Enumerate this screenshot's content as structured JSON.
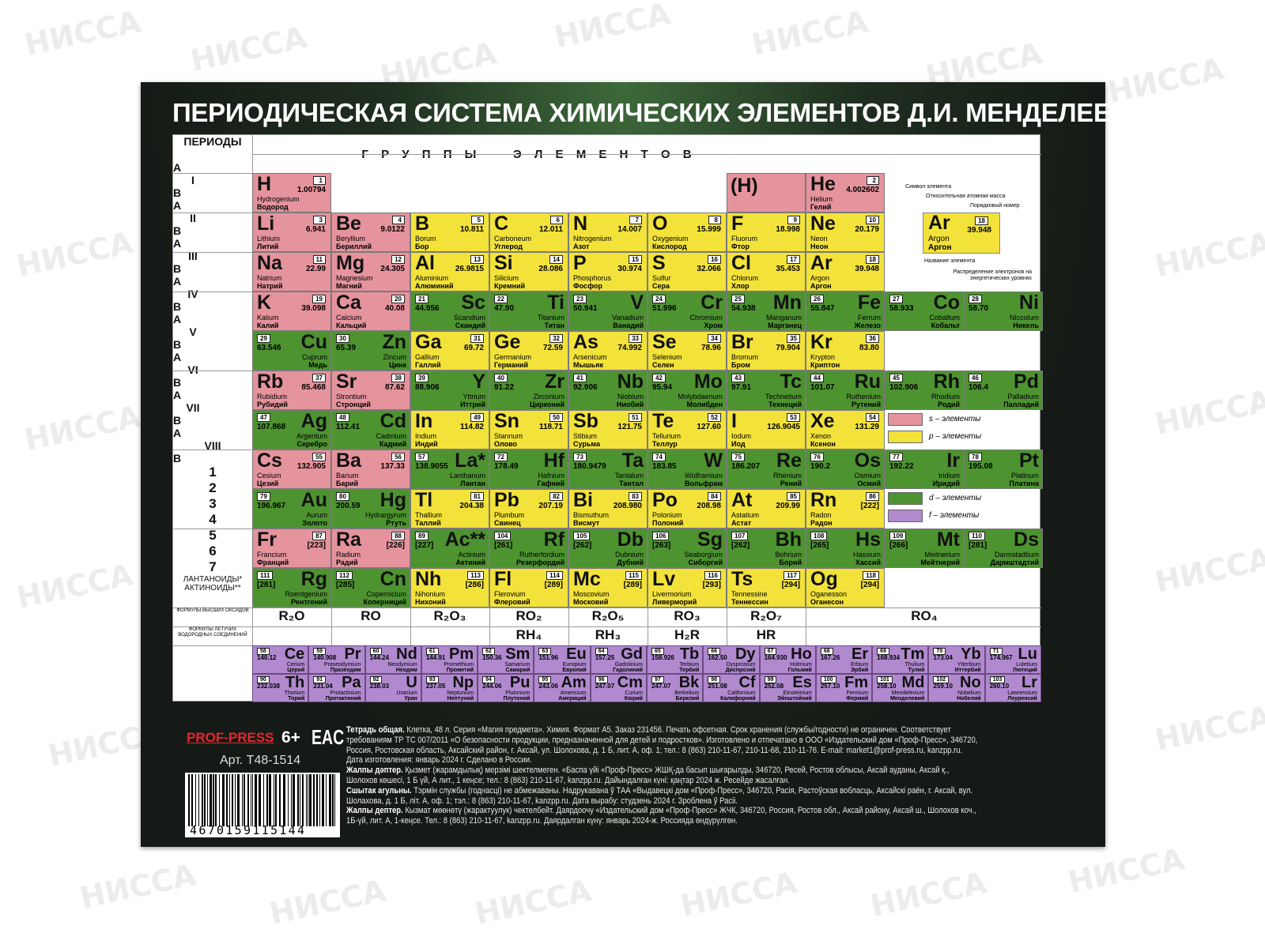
{
  "watermark": "НИССА",
  "title": "ПЕРИОДИЧЕСКАЯ СИСТЕМА ХИМИЧЕСКИХ ЭЛЕМЕНТОВ Д.И. МЕНДЕЛЕЕВА",
  "periods_label": "ПЕРИОДЫ",
  "groups_label": "Г Р У П П Ы    Э Л Е М Е Н Т О В",
  "groups": [
    "I",
    "II",
    "III",
    "IV",
    "V",
    "VI",
    "VII",
    "VIII"
  ],
  "subgroup_a": "A",
  "subgroup_b": "B",
  "periods": [
    "1",
    "2",
    "3",
    "4",
    "5",
    "6",
    "7"
  ],
  "colors": {
    "s": "#e5939d",
    "p": "#f2e23a",
    "d": "#4d9330",
    "f": "#b089cf"
  },
  "rows": [
    [
      [
        "H",
        1,
        "1.00794",
        "Hydrogenium",
        "Водород",
        "s",
        "A"
      ],
      null,
      null,
      null,
      null,
      null,
      [
        "(H)",
        "",
        "",
        "",
        "",
        "s",
        "A"
      ],
      [
        "He",
        2,
        "4.002602",
        "Helium",
        "Гелий",
        "s",
        "A"
      ],
      null,
      null
    ],
    [
      [
        "Li",
        3,
        "6.941",
        "Lithium",
        "Литий",
        "s",
        "A"
      ],
      [
        "Be",
        4,
        "9.0122",
        "Beryllium",
        "Бериллий",
        "s",
        "A"
      ],
      [
        "B",
        5,
        "10.811",
        "Borum",
        "Бор",
        "p",
        "A"
      ],
      [
        "C",
        6,
        "12.011",
        "Carboneum",
        "Углерод",
        "p",
        "A"
      ],
      [
        "N",
        7,
        "14.007",
        "Nitrogenium",
        "Азот",
        "p",
        "A"
      ],
      [
        "O",
        8,
        "15.999",
        "Oxygenium",
        "Кислород",
        "p",
        "A"
      ],
      [
        "F",
        9,
        "18.998",
        "Fluorum",
        "Фтор",
        "p",
        "A"
      ],
      [
        "Ne",
        10,
        "20.179",
        "Neon",
        "Неон",
        "p",
        "A"
      ],
      null,
      null
    ],
    [
      [
        "Na",
        11,
        "22.99",
        "Natrium",
        "Натрий",
        "s",
        "A"
      ],
      [
        "Mg",
        12,
        "24.305",
        "Magnesium",
        "Магний",
        "s",
        "A"
      ],
      [
        "Al",
        13,
        "26.9815",
        "Aluminium",
        "Алюминий",
        "p",
        "A"
      ],
      [
        "Si",
        14,
        "28.086",
        "Silicium",
        "Кремний",
        "p",
        "A"
      ],
      [
        "P",
        15,
        "30.974",
        "Phosphorus",
        "Фосфор",
        "p",
        "A"
      ],
      [
        "S",
        16,
        "32.066",
        "Sulfur",
        "Сера",
        "p",
        "A"
      ],
      [
        "Cl",
        17,
        "35.453",
        "Chlorum",
        "Хлор",
        "p",
        "A"
      ],
      [
        "Ar",
        18,
        "39.948",
        "Argon",
        "Аргон",
        "p",
        "A"
      ],
      null,
      null
    ],
    [
      [
        "K",
        19,
        "39.098",
        "Kalium",
        "Калий",
        "s",
        "A"
      ],
      [
        "Ca",
        20,
        "40.08",
        "Calcium",
        "Кальций",
        "s",
        "A"
      ],
      [
        "Sc",
        21,
        "44.956",
        "Scandium",
        "Скандий",
        "d",
        "B"
      ],
      [
        "Ti",
        22,
        "47.90",
        "Titanium",
        "Титан",
        "d",
        "B"
      ],
      [
        "V",
        23,
        "50.941",
        "Vanadium",
        "Ванадий",
        "d",
        "B"
      ],
      [
        "Cr",
        24,
        "51.996",
        "Chromium",
        "Хром",
        "d",
        "B"
      ],
      [
        "Mn",
        25,
        "54.938",
        "Manganum",
        "Марганец",
        "d",
        "B"
      ],
      [
        "Fe",
        26,
        "55.847",
        "Ferrum",
        "Железо",
        "d",
        "B"
      ],
      [
        "Co",
        27,
        "58.933",
        "Cobaltum",
        "Кобальт",
        "d",
        "B"
      ],
      [
        "Ni",
        28,
        "58.70",
        "Niccolum",
        "Никель",
        "d",
        "B"
      ]
    ],
    [
      [
        "Cu",
        29,
        "63.546",
        "Cuprum",
        "Медь",
        "d",
        "B"
      ],
      [
        "Zn",
        30,
        "65.39",
        "Zincum",
        "Цинк",
        "d",
        "B"
      ],
      [
        "Ga",
        31,
        "69.72",
        "Gallium",
        "Галлий",
        "p",
        "A"
      ],
      [
        "Ge",
        32,
        "72.59",
        "Germanium",
        "Германий",
        "p",
        "A"
      ],
      [
        "As",
        33,
        "74.992",
        "Arsenicum",
        "Мышьяк",
        "p",
        "A"
      ],
      [
        "Se",
        34,
        "78.96",
        "Selenium",
        "Селен",
        "p",
        "A"
      ],
      [
        "Br",
        35,
        "79.904",
        "Bromum",
        "Бром",
        "p",
        "A"
      ],
      [
        "Kr",
        36,
        "83.80",
        "Krypton",
        "Криптон",
        "p",
        "A"
      ],
      null,
      null
    ],
    [
      [
        "Rb",
        37,
        "85.468",
        "Rubidium",
        "Рубидий",
        "s",
        "A"
      ],
      [
        "Sr",
        38,
        "87.62",
        "Strontium",
        "Стронций",
        "s",
        "A"
      ],
      [
        "Y",
        39,
        "88.906",
        "Yttrium",
        "Иттрий",
        "d",
        "B"
      ],
      [
        "Zr",
        40,
        "91.22",
        "Zirconium",
        "Цирконий",
        "d",
        "B"
      ],
      [
        "Nb",
        41,
        "92.906",
        "Niobium",
        "Ниобий",
        "d",
        "B"
      ],
      [
        "Mo",
        42,
        "95.94",
        "Molybdaenum",
        "Молибден",
        "d",
        "B"
      ],
      [
        "Tc",
        43,
        "97.91",
        "Technetium",
        "Технеций",
        "d",
        "B"
      ],
      [
        "Ru",
        44,
        "101.07",
        "Ruthenium",
        "Рутений",
        "d",
        "B"
      ],
      [
        "Rh",
        45,
        "102.906",
        "Rhodium",
        "Родий",
        "d",
        "B"
      ],
      [
        "Pd",
        46,
        "106.4",
        "Palladium",
        "Палладий",
        "d",
        "B"
      ]
    ],
    [
      [
        "Ag",
        47,
        "107.868",
        "Argentum",
        "Серебро",
        "d",
        "B"
      ],
      [
        "Cd",
        48,
        "112.41",
        "Cadmium",
        "Кадмий",
        "d",
        "B"
      ],
      [
        "In",
        49,
        "114.82",
        "Indium",
        "Индий",
        "p",
        "A"
      ],
      [
        "Sn",
        50,
        "118.71",
        "Stannum",
        "Олово",
        "p",
        "A"
      ],
      [
        "Sb",
        51,
        "121.75",
        "Stibium",
        "Сурьма",
        "p",
        "A"
      ],
      [
        "Te",
        52,
        "127.60",
        "Tellurium",
        "Теллур",
        "p",
        "A"
      ],
      [
        "I",
        53,
        "126.9045",
        "Iodum",
        "Иод",
        "p",
        "A"
      ],
      [
        "Xe",
        54,
        "131.29",
        "Xenon",
        "Ксенон",
        "p",
        "A"
      ],
      null,
      null
    ],
    [
      [
        "Cs",
        55,
        "132.905",
        "Cesium",
        "Цезий",
        "s",
        "A"
      ],
      [
        "Ba",
        56,
        "137.33",
        "Barium",
        "Барий",
        "s",
        "A"
      ],
      [
        "La*",
        57,
        "138.9055",
        "Lanthanum",
        "Лантан",
        "d",
        "B"
      ],
      [
        "Hf",
        72,
        "178.49",
        "Hafnium",
        "Гафний",
        "d",
        "B"
      ],
      [
        "Ta",
        73,
        "180.9479",
        "Tantalum",
        "Тантал",
        "d",
        "B"
      ],
      [
        "W",
        74,
        "183.85",
        "Wolframium",
        "Вольфрам",
        "d",
        "B"
      ],
      [
        "Re",
        75,
        "186.207",
        "Rhenium",
        "Рений",
        "d",
        "B"
      ],
      [
        "Os",
        76,
        "190.2",
        "Osmium",
        "Осмий",
        "d",
        "B"
      ],
      [
        "Ir",
        77,
        "192.22",
        "Iridium",
        "Иридий",
        "d",
        "B"
      ],
      [
        "Pt",
        78,
        "195.08",
        "Platinum",
        "Платина",
        "d",
        "B"
      ]
    ],
    [
      [
        "Au",
        79,
        "196.967",
        "Aurum",
        "Золото",
        "d",
        "B"
      ],
      [
        "Hg",
        80,
        "200.59",
        "Hydrargyrum",
        "Ртуть",
        "d",
        "B"
      ],
      [
        "Tl",
        81,
        "204.38",
        "Thallium",
        "Таллий",
        "p",
        "A"
      ],
      [
        "Pb",
        82,
        "207.19",
        "Plumbum",
        "Свинец",
        "p",
        "A"
      ],
      [
        "Bi",
        83,
        "208.980",
        "Bismuthum",
        "Висмут",
        "p",
        "A"
      ],
      [
        "Po",
        84,
        "208.98",
        "Polonium",
        "Полоний",
        "p",
        "A"
      ],
      [
        "At",
        85,
        "209.99",
        "Astatium",
        "Астат",
        "p",
        "A"
      ],
      [
        "Rn",
        86,
        "[222]",
        "Radon",
        "Радон",
        "p",
        "A"
      ],
      null,
      null
    ],
    [
      [
        "Fr",
        87,
        "[223]",
        "Francium",
        "Франций",
        "s",
        "A"
      ],
      [
        "Ra",
        88,
        "[226]",
        "Radium",
        "Радий",
        "s",
        "A"
      ],
      [
        "Ac**",
        89,
        "[227]",
        "Actinium",
        "Актиний",
        "d",
        "B"
      ],
      [
        "Rf",
        104,
        "[261]",
        "Rutherfordium",
        "Резерфордий",
        "d",
        "B"
      ],
      [
        "Db",
        105,
        "[262]",
        "Dubnium",
        "Дубний",
        "d",
        "B"
      ],
      [
        "Sg",
        106,
        "[263]",
        "Seaborgium",
        "Сиборгий",
        "d",
        "B"
      ],
      [
        "Bh",
        107,
        "[262]",
        "Bohrium",
        "Борий",
        "d",
        "B"
      ],
      [
        "Hs",
        108,
        "[265]",
        "Hassium",
        "Хассий",
        "d",
        "B"
      ],
      [
        "Mt",
        109,
        "[266]",
        "Meitnerium",
        "Мейтнерий",
        "d",
        "B"
      ],
      [
        "Ds",
        110,
        "[281]",
        "Darmstadtium",
        "Дармштадтий",
        "d",
        "B"
      ]
    ],
    [
      [
        "Rg",
        111,
        "[281]",
        "Roentgenium",
        "Рентгений",
        "d",
        "B"
      ],
      [
        "Cn",
        112,
        "[285]",
        "Copernicium",
        "Коперниций",
        "d",
        "B"
      ],
      [
        "Nh",
        113,
        "[286]",
        "Nihonium",
        "Нихоний",
        "p",
        "A"
      ],
      [
        "Fl",
        114,
        "[289]",
        "Flerovium",
        "Флеровий",
        "p",
        "A"
      ],
      [
        "Mc",
        115,
        "[289]",
        "Moscovium",
        "Московий",
        "p",
        "A"
      ],
      [
        "Lv",
        116,
        "[293]",
        "Livermorium",
        "Ливерморий",
        "p",
        "A"
      ],
      [
        "Ts",
        117,
        "[294]",
        "Tennessine",
        "Теннессин",
        "p",
        "A"
      ],
      [
        "Og",
        118,
        "[294]",
        "Oganesson",
        "Оганесон",
        "p",
        "A"
      ],
      null,
      null
    ]
  ],
  "oxides_label": "ФОРМУЛЫ ВЫСШИХ ОКСИДОВ",
  "oxides": [
    "R₂O",
    "RO",
    "R₂O₃",
    "RO₂",
    "R₂O₅",
    "RO₃",
    "R₂O₇",
    "RO₄"
  ],
  "hydrides_label": "ФОРМУЛЫ ЛЕТУЧИХ ВОДОРОДНЫХ СОЕДИНЕНИЙ",
  "hydrides": [
    "",
    "",
    "",
    "RH₄",
    "RH₃",
    "H₂R",
    "HR",
    ""
  ],
  "lanthanides_label": "ЛАНТАНОИДЫ*",
  "lanthanides": [
    [
      "Ce",
      58,
      "140.12",
      "Cerium",
      "Церий"
    ],
    [
      "Pr",
      59,
      "140.908",
      "Praseodymium",
      "Празеодим"
    ],
    [
      "Nd",
      60,
      "144.24",
      "Neodymium",
      "Неодим"
    ],
    [
      "Pm",
      61,
      "144.91",
      "Promethium",
      "Прометий"
    ],
    [
      "Sm",
      62,
      "150.36",
      "Samarium",
      "Самарий"
    ],
    [
      "Eu",
      63,
      "151.96",
      "Europium",
      "Европий"
    ],
    [
      "Gd",
      64,
      "157.25",
      "Gadolinium",
      "Гадолиний"
    ],
    [
      "Tb",
      65,
      "158.926",
      "Terbium",
      "Тербий"
    ],
    [
      "Dy",
      66,
      "162.50",
      "Dysprosium",
      "Диспрозий"
    ],
    [
      "Ho",
      67,
      "164.930",
      "Holmium",
      "Гольмий"
    ],
    [
      "Er",
      68,
      "167.26",
      "Erbium",
      "Эрбий"
    ],
    [
      "Tm",
      69,
      "168.934",
      "Thulium",
      "Тулий"
    ],
    [
      "Yb",
      70,
      "173.04",
      "Ytterbium",
      "Иттербий"
    ],
    [
      "Lu",
      71,
      "174.967",
      "Lutetium",
      "Лютеций"
    ]
  ],
  "actinides_label": "АКТИНОИДЫ**",
  "actinides": [
    [
      "Th",
      90,
      "232.038",
      "Thorium",
      "Торий"
    ],
    [
      "Pa",
      91,
      "231.04",
      "Protactinium",
      "Протактиний"
    ],
    [
      "U",
      92,
      "238.03",
      "Uranium",
      "Уран"
    ],
    [
      "Np",
      93,
      "237.05",
      "Neptunium",
      "Нептуний"
    ],
    [
      "Pu",
      94,
      "244.06",
      "Plutonium",
      "Плутоний"
    ],
    [
      "Am",
      95,
      "243.06",
      "Americium",
      "Америций"
    ],
    [
      "Cm",
      96,
      "247.07",
      "Curium",
      "Кюрий"
    ],
    [
      "Bk",
      97,
      "247.07",
      "Berkelium",
      "Берклий"
    ],
    [
      "Cf",
      98,
      "251.08",
      "Californium",
      "Калифорний"
    ],
    [
      "Es",
      99,
      "252.08",
      "Einsteinium",
      "Эйнштейний"
    ],
    [
      "Fm",
      100,
      "257.10",
      "Fermium",
      "Фермий"
    ],
    [
      "Md",
      101,
      "258.10",
      "Mendelevium",
      "Менделевий"
    ],
    [
      "No",
      102,
      "259.10",
      "Nobelium",
      "Нобелий"
    ],
    [
      "Lr",
      103,
      "260.10",
      "Lawrencium",
      "Лоуренсий"
    ]
  ],
  "key": {
    "symbol_label": "Символ элемента",
    "mass_label": "Относительная атомная масса",
    "number_label": "Порядковый номер",
    "name_label": "Название элемента",
    "electrons_label": "Распределение электронов на энергетических уровнях",
    "sym": "Ar",
    "num": "18",
    "mass": "39.948",
    "latin": "Argon",
    "rus": "Аргон"
  },
  "legend": [
    {
      "type": "s",
      "label": "s – элементы"
    },
    {
      "type": "p",
      "label": "p – элементы"
    },
    {
      "type": "d",
      "label": "d – элементы"
    },
    {
      "type": "f",
      "label": "f – элементы"
    }
  ],
  "brand": "PROF-PRESS",
  "age": "6+",
  "eac": "EAC",
  "article": "Арт. Т48-1514",
  "barcode": "4670159115144",
  "info": [
    {
      "lead": "Тетрадь общая.",
      "text": " Клетка, 48 л. Серия «Магия предмета». Химия. Формат А5. Заказ 231456. Печать офсетная. Срок хранения (службы/годности) не ограничен. Соответствует требованиям ТР ТС 007/2011 «О безопасности продукции, предназначенной для детей и подростков». Изготовлено и отпечатано в ООО «Издательский дом «Проф-Пресс», 346720, Россия, Ростовская область, Аксайский район, г. Аксай, ул. Шолохова, д. 1 Б, лит. А, оф. 1; тел.: 8 (863) 210-11-67, 210-11-68, 210-11-76. E-mail: market1@prof-press.ru, kanzpp.ru. Дата изготовления: январь 2024 г. Сделано в России."
    },
    {
      "lead": "Жалпы дәптер.",
      "text": " Қызмет (жарамдылық) мерзімі шектелмеген. «Баспа үйі «Проф-Пресс» ЖШҚ-да басып шығарылды, 346720, Ресей, Ростов облысы, Аксай ауданы, Аксай қ., Шолохов көшесі, 1 Б үй, А лит., 1 кеңсе; тел.: 8 (863) 210-11-67, kanzpp.ru. Дайындалған күні: қаңтар 2024 ж. Ресейде жасалған."
    },
    {
      "lead": "Сшытак агульны.",
      "text": " Тэрмін службы (годнасці) не абмежаваны. Надрукавана ў ТАА «Выдавецкі дом «Проф-Пресс», 346720, Расія, Растоўская вобласць, Аксайскі раён, г. Аксай, вул. Шолахова, д. 1 Б, літ. А, оф. 1; тэл.: 8 (863) 210-11-67, kanzpp.ru. Дата вырабу: студзень 2024 г. Зроблена ў Расіі."
    },
    {
      "lead": "Жалпы дептер.",
      "text": " Кызмат мөөнөтү (жарактуулук) чектелбейт. Даярдоочу «Издательский дом «Проф-Пресс» ЖЧК, 346720, Россия, Ростов обл., Аксай району, Аксай ш., Шолохов коч., 1Б-үй, лит. А, 1-кеңсе. Тел.: 8 (863) 210-11-67, kanzpp.ru. Даярдалган күнү: январь 2024-ж. Россияда өндүрүлгөн."
    }
  ]
}
